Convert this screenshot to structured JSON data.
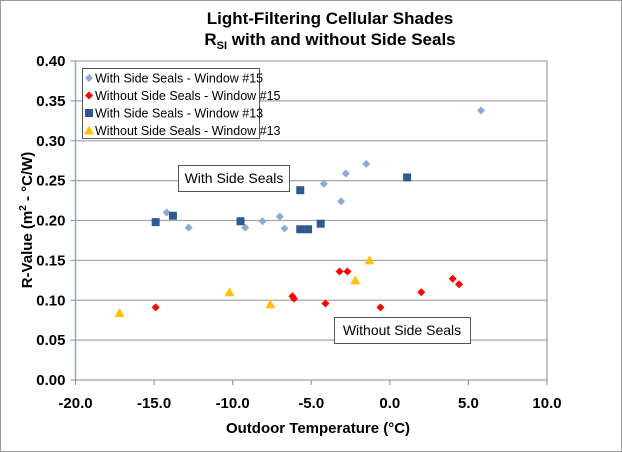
{
  "chart_data": {
    "type": "scatter",
    "title": {
      "line1": "Light-Filtering Cellular Shades",
      "line2_main": "R",
      "line2_sub": "SI",
      "line2_rest": " with and without Side Seals"
    },
    "xlabel": "Outdoor Temperature (°C)",
    "ylabel": {
      "main": "R-Value (m",
      "sup": "2",
      "rest": " - °C/W)"
    },
    "xlim": [
      -20,
      10
    ],
    "ylim": [
      0,
      0.4
    ],
    "xticks": [
      "-20.0",
      "-15.0",
      "-10.0",
      "-5.0",
      "0.0",
      "5.0",
      "10.0"
    ],
    "yticks": [
      "0.00",
      "0.05",
      "0.10",
      "0.15",
      "0.20",
      "0.25",
      "0.30",
      "0.35",
      "0.40"
    ],
    "grid": "horizontal",
    "legend_position": "top-left",
    "annotations": [
      "With Side Seals",
      "Without Side Seals"
    ],
    "series": [
      {
        "name": "With Side Seals - Window #15",
        "marker": "diamond",
        "color": "#8FA8D6",
        "points": [
          [
            -14.2,
            0.21
          ],
          [
            -12.8,
            0.191
          ],
          [
            -9.2,
            0.191
          ],
          [
            -8.1,
            0.199
          ],
          [
            -7.0,
            0.205
          ],
          [
            -6.7,
            0.19
          ],
          [
            -4.2,
            0.246
          ],
          [
            -3.1,
            0.224
          ],
          [
            -2.8,
            0.259
          ],
          [
            -1.5,
            0.271
          ],
          [
            5.8,
            0.338
          ]
        ]
      },
      {
        "name": "Without Side Seals - Window #15",
        "marker": "diamond",
        "color": "#FF0000",
        "points": [
          [
            -14.9,
            0.091
          ],
          [
            -6.2,
            0.105
          ],
          [
            -6.1,
            0.102
          ],
          [
            -4.1,
            0.096
          ],
          [
            -3.2,
            0.136
          ],
          [
            -2.7,
            0.136
          ],
          [
            -0.6,
            0.091
          ],
          [
            2.0,
            0.11
          ],
          [
            4.0,
            0.127
          ],
          [
            4.4,
            0.12
          ]
        ]
      },
      {
        "name": "With Side Seals - Window #13",
        "marker": "square",
        "color": "#2E5A91",
        "points": [
          [
            -14.9,
            0.198
          ],
          [
            -13.8,
            0.206
          ],
          [
            -9.5,
            0.199
          ],
          [
            -5.7,
            0.238
          ],
          [
            -5.7,
            0.189
          ],
          [
            -5.2,
            0.189
          ],
          [
            -4.4,
            0.196
          ],
          [
            1.1,
            0.254
          ]
        ]
      },
      {
        "name": "Without Side Seals - Window #13",
        "marker": "triangle",
        "color": "#FFC000",
        "points": [
          [
            -17.2,
            0.084
          ],
          [
            -10.2,
            0.11
          ],
          [
            -7.6,
            0.095
          ],
          [
            -2.2,
            0.125
          ],
          [
            -1.3,
            0.15
          ]
        ]
      }
    ]
  }
}
